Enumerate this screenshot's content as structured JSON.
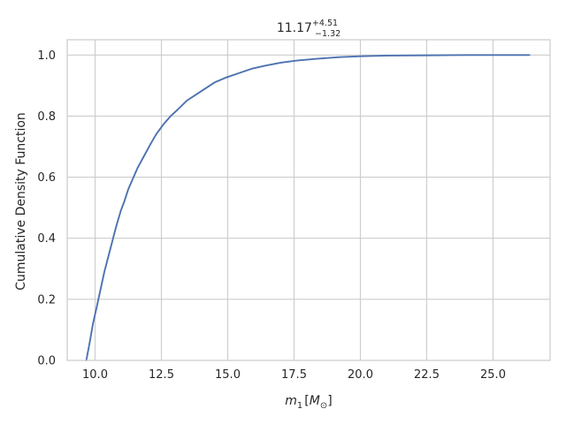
{
  "chart_data": {
    "type": "line",
    "title": {
      "main": "11.17",
      "sup": "+4.51",
      "sub": "−1.32"
    },
    "xlabel": {
      "symbol": "m",
      "subscript": "1",
      "unit_open": "[",
      "unit": "M",
      "unit_subscript": "⊙",
      "unit_close": "]"
    },
    "ylabel": "Cumulative Density Function",
    "xlim": [
      8.95,
      27.15
    ],
    "ylim": [
      0.0,
      1.05
    ],
    "x_ticks": [
      10.0,
      12.5,
      15.0,
      17.5,
      20.0,
      22.5,
      25.0
    ],
    "x_tick_labels": [
      "10.0",
      "12.5",
      "15.0",
      "17.5",
      "20.0",
      "22.5",
      "25.0"
    ],
    "y_ticks": [
      0.0,
      0.2,
      0.4,
      0.6,
      0.8,
      1.0
    ],
    "y_tick_labels": [
      "0.0",
      "0.2",
      "0.4",
      "0.6",
      "0.8",
      "1.0"
    ],
    "grid": true,
    "series": [
      {
        "color": "#4c72b0",
        "x": [
          9.67,
          9.8,
          9.92,
          10.05,
          10.2,
          10.35,
          10.5,
          10.65,
          10.8,
          10.97,
          11.1,
          11.25,
          11.4,
          11.6,
          11.85,
          12.1,
          12.3,
          12.55,
          12.85,
          13.1,
          13.45,
          13.8,
          14.15,
          14.5,
          14.9,
          15.4,
          15.9,
          16.4,
          17.0,
          17.6,
          18.4,
          19.2,
          20.0,
          21.0,
          22.5,
          24.0,
          25.5,
          26.37
        ],
        "y": [
          0.0,
          0.06,
          0.12,
          0.17,
          0.23,
          0.29,
          0.34,
          0.39,
          0.44,
          0.49,
          0.52,
          0.56,
          0.59,
          0.63,
          0.67,
          0.71,
          0.74,
          0.77,
          0.8,
          0.82,
          0.85,
          0.87,
          0.89,
          0.91,
          0.925,
          0.94,
          0.955,
          0.965,
          0.975,
          0.982,
          0.988,
          0.993,
          0.996,
          0.998,
          0.999,
          1.0,
          1.0,
          1.0
        ]
      }
    ]
  }
}
